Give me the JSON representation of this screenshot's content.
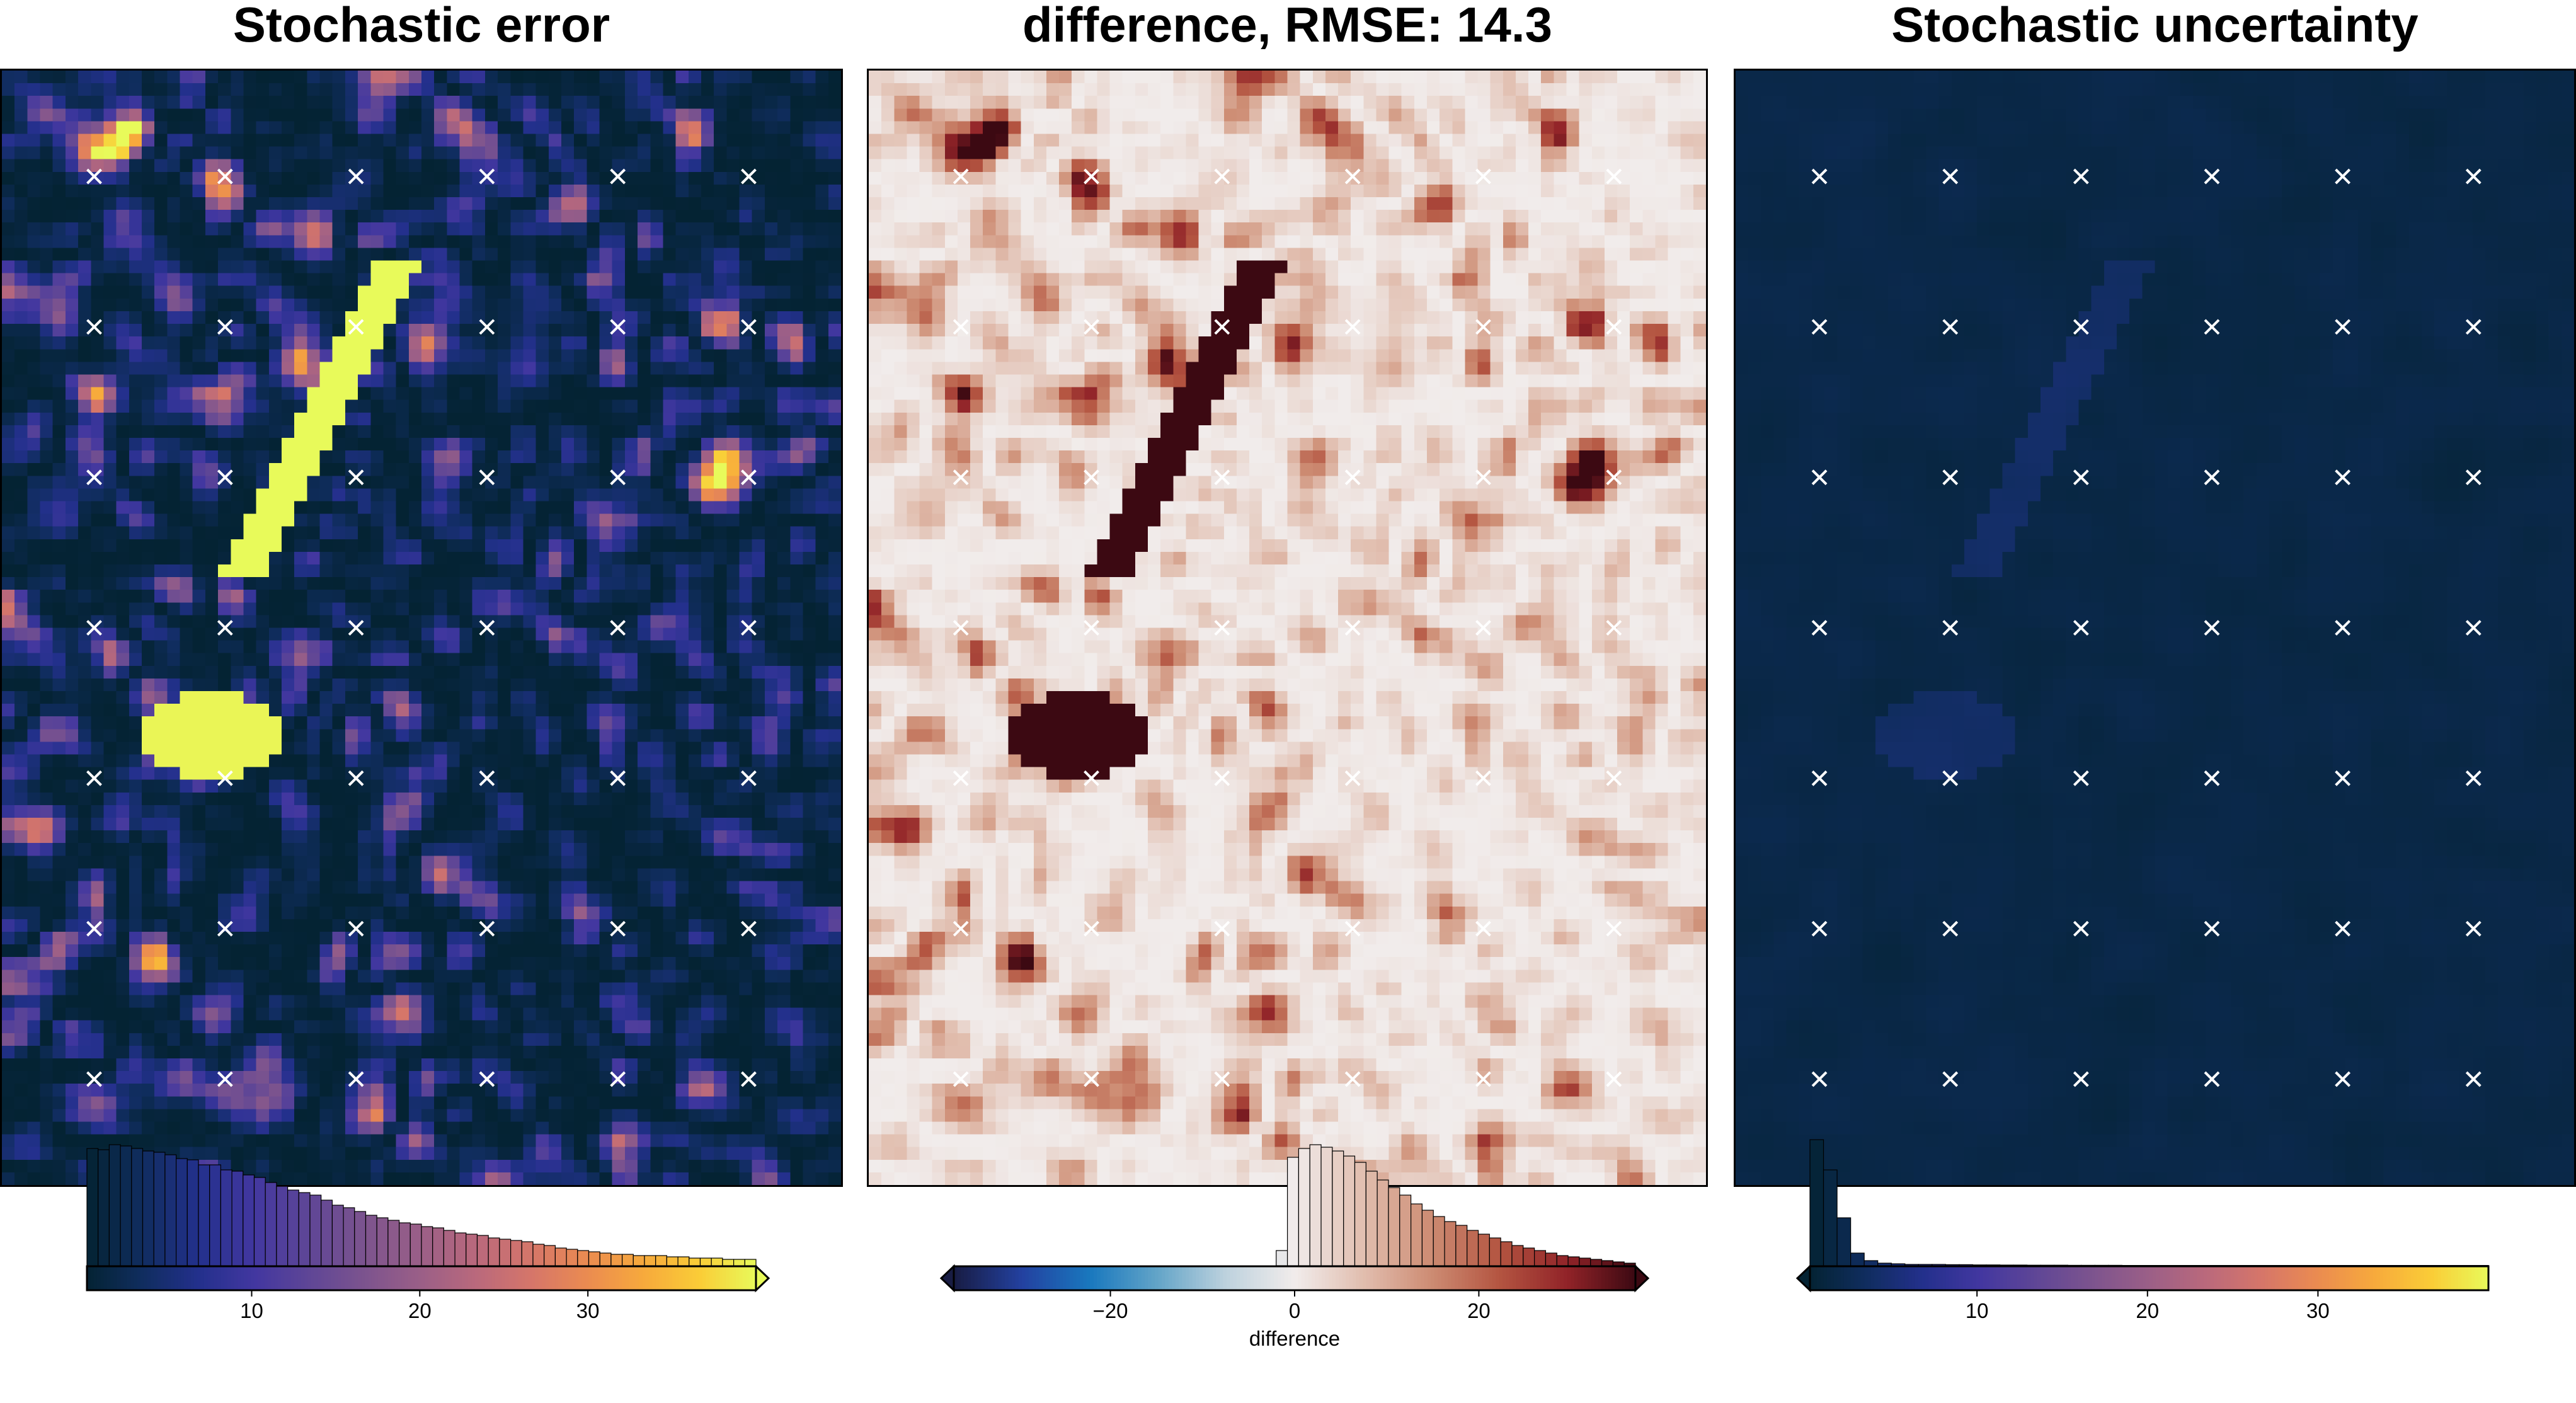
{
  "panels": [
    {
      "title": "Stochastic error",
      "colormap": "thermal",
      "vmin": 0.2,
      "vmax": 40,
      "colorbar_extend": "right",
      "colorbar_label": "",
      "ticks": [
        10,
        20,
        30
      ],
      "tick_labels": [
        "10",
        "20",
        "30"
      ],
      "histogram_counts": [
        0.93,
        0.92,
        0.96,
        0.95,
        0.93,
        0.91,
        0.9,
        0.88,
        0.85,
        0.84,
        0.8,
        0.8,
        0.76,
        0.75,
        0.72,
        0.7,
        0.66,
        0.63,
        0.6,
        0.58,
        0.56,
        0.52,
        0.48,
        0.46,
        0.43,
        0.4,
        0.38,
        0.36,
        0.34,
        0.33,
        0.31,
        0.3,
        0.28,
        0.26,
        0.25,
        0.24,
        0.22,
        0.21,
        0.2,
        0.19,
        0.17,
        0.16,
        0.14,
        0.13,
        0.12,
        0.11,
        0.1,
        0.09,
        0.09,
        0.08,
        0.08,
        0.08,
        0.07,
        0.07,
        0.06,
        0.06,
        0.06,
        0.05,
        0.05,
        0.05
      ]
    },
    {
      "title": "difference, RMSE: 14.3",
      "colormap": "balance",
      "vmin": -37,
      "vmax": 37,
      "colorbar_extend": "both",
      "colorbar_label": "difference",
      "ticks": [
        -20,
        0,
        20
      ],
      "tick_labels": [
        "−20",
        "0",
        "20"
      ],
      "hist_range": [
        -2,
        37
      ],
      "histogram_counts": [
        0.12,
        0.86,
        0.93,
        0.96,
        0.94,
        0.91,
        0.87,
        0.82,
        0.75,
        0.68,
        0.62,
        0.56,
        0.49,
        0.44,
        0.39,
        0.35,
        0.32,
        0.28,
        0.25,
        0.22,
        0.19,
        0.16,
        0.14,
        0.12,
        0.1,
        0.08,
        0.07,
        0.06,
        0.05,
        0.04,
        0.03,
        0.02
      ]
    },
    {
      "title": "Stochastic uncertainty",
      "colormap": "thermal",
      "vmin": 0.2,
      "vmax": 40,
      "colorbar_extend": "left",
      "colorbar_label": "",
      "ticks": [
        10,
        20,
        30
      ],
      "tick_labels": [
        "10",
        "20",
        "30"
      ],
      "histogram_counts": [
        1.0,
        0.76,
        0.38,
        0.1,
        0.04,
        0.02,
        0.015,
        0.01,
        0.01,
        0.01,
        0.008,
        0.008,
        0.006,
        0.006,
        0.005,
        0.005,
        0.004,
        0.004,
        0.004,
        0.003,
        0.003,
        0.003,
        0.003,
        0.002,
        0.002,
        0.002,
        0.002,
        0.002,
        0.002,
        0.002,
        0.002,
        0.002,
        0.002,
        0.002,
        0.002,
        0.002,
        0.002,
        0.002,
        0.002,
        0.002,
        0.002,
        0.002,
        0.002,
        0.002,
        0.002,
        0.002,
        0.002,
        0.002,
        0.002,
        0.002
      ]
    }
  ],
  "markers": {
    "symbol": "x",
    "color": "#ffffff",
    "columns": 6,
    "rows": 7
  }
}
